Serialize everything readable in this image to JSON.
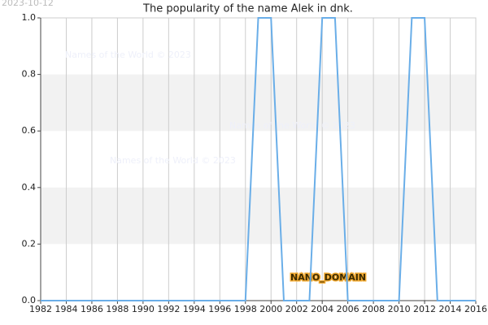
{
  "chart_data": {
    "type": "line",
    "title": "The popularity of the name Alek in dnk.",
    "x": [
      1982,
      1983,
      1984,
      1985,
      1986,
      1987,
      1988,
      1989,
      1990,
      1991,
      1992,
      1993,
      1994,
      1995,
      1996,
      1997,
      1998,
      1999,
      2000,
      2001,
      2002,
      2003,
      2004,
      2005,
      2006,
      2007,
      2008,
      2009,
      2010,
      2011,
      2012,
      2013,
      2014,
      2015,
      2016
    ],
    "values": [
      0,
      0,
      0,
      0,
      0,
      0,
      0,
      0,
      0,
      0,
      0,
      0,
      0,
      0,
      0,
      0,
      0,
      1,
      1,
      0,
      0,
      0,
      1,
      1,
      0,
      0,
      0,
      0,
      0,
      1,
      1,
      0,
      0,
      0,
      0
    ],
    "color": "#6aaee8",
    "xlim": [
      1982,
      2016
    ],
    "xticks": [
      1982,
      1984,
      1986,
      1988,
      1990,
      1992,
      1994,
      1996,
      1998,
      2000,
      2002,
      2004,
      2006,
      2008,
      2010,
      2012,
      2014,
      2016
    ],
    "ylim": [
      0,
      1
    ],
    "yticks": [
      {
        "value": 0,
        "label": "0.0"
      },
      0.2,
      0.4,
      0.6,
      0.8,
      {
        "value": 1,
        "label": "1.0"
      }
    ],
    "grid": true,
    "annotations": [
      "2023-10-12",
      "Names of the World © 2023",
      "Names of the World © 2023",
      "Names of the World © 2023",
      "NANO_DOMAIN"
    ]
  }
}
